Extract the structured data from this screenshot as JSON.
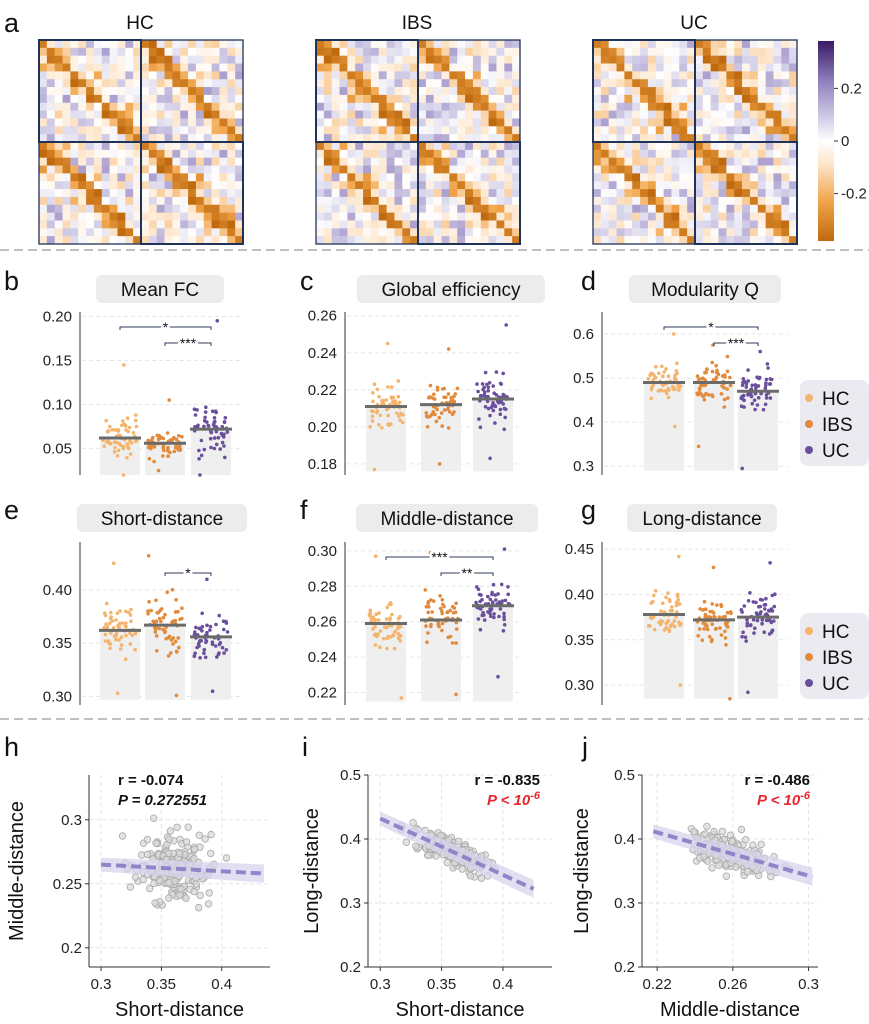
{
  "colors": {
    "HC": "#f4b46c",
    "IBS": "#e18a3b",
    "UC": "#6a4f9d",
    "bar_bg": "#efefef",
    "mean_bar": "#6b6b6b",
    "scatter_point": "#c8c8c8",
    "fit_line": "#8d86c9",
    "fit_band": "#d8d4ee",
    "matrix_frame": "#1f3358",
    "colormap": [
      "#c06a10",
      "#f1a54a",
      "#fde4c8",
      "#ffffff",
      "#d7d3ea",
      "#8f7fbd",
      "#3a1a64"
    ],
    "stat_red": "#e8262f"
  },
  "panel_a": {
    "label": "a",
    "matrix_titles": [
      "HC",
      "IBS",
      "UC"
    ],
    "colorbar": {
      "ticks": [
        "0.2",
        "0",
        "-0.2"
      ],
      "tick_values": [
        0.2,
        0,
        -0.2
      ],
      "range": [
        -0.38,
        0.38
      ]
    }
  },
  "legend": {
    "entries": [
      "HC",
      "IBS",
      "UC"
    ]
  },
  "chart_data": [
    {
      "panel": "b",
      "type": "scatter",
      "title": "Mean FC",
      "categories": [
        "HC",
        "IBS",
        "UC"
      ],
      "means": [
        0.062,
        0.056,
        0.072
      ],
      "ylim": [
        0.02,
        0.205
      ],
      "yticks": [
        0.05,
        0.1,
        0.15,
        0.2
      ],
      "ytick_labels": [
        "0.05",
        "0.10",
        "0.15",
        "0.20"
      ],
      "base": 0.02,
      "point_range": [
        [
          0.02,
          0.145
        ],
        [
          0.025,
          0.105
        ],
        [
          0.02,
          0.195
        ]
      ],
      "comparisons": [
        {
          "from": 0,
          "to": 2,
          "label": "*"
        },
        {
          "from": 1,
          "to": 2,
          "label": "***"
        }
      ]
    },
    {
      "panel": "c",
      "type": "scatter",
      "title": "Global efficiency",
      "categories": [
        "HC",
        "IBS",
        "UC"
      ],
      "means": [
        0.211,
        0.212,
        0.215
      ],
      "ylim": [
        0.174,
        0.262
      ],
      "yticks": [
        0.18,
        0.2,
        0.22,
        0.24,
        0.26
      ],
      "ytick_labels": [
        "0.18",
        "0.20",
        "0.22",
        "0.24",
        "0.26"
      ],
      "base": 0.176,
      "point_range": [
        [
          0.177,
          0.245
        ],
        [
          0.18,
          0.242
        ],
        [
          0.183,
          0.255
        ]
      ],
      "comparisons": []
    },
    {
      "panel": "d",
      "type": "scatter",
      "title": "Modularity Q",
      "categories": [
        "HC",
        "IBS",
        "UC"
      ],
      "means": [
        0.49,
        0.49,
        0.47
      ],
      "ylim": [
        0.28,
        0.65
      ],
      "yticks": [
        0.3,
        0.4,
        0.5,
        0.6
      ],
      "ytick_labels": [
        "0.3",
        "0.4",
        "0.5",
        "0.6"
      ],
      "base": 0.29,
      "point_range": [
        [
          0.39,
          0.6
        ],
        [
          0.345,
          0.575
        ],
        [
          0.295,
          0.56
        ]
      ],
      "comparisons": [
        {
          "from": 0,
          "to": 2,
          "label": "*"
        },
        {
          "from": 1,
          "to": 2,
          "label": "***"
        }
      ]
    },
    {
      "panel": "e",
      "type": "scatter",
      "title": "Short-distance",
      "categories": [
        "HC",
        "IBS",
        "UC"
      ],
      "means": [
        0.362,
        0.367,
        0.356
      ],
      "ylim": [
        0.292,
        0.445
      ],
      "yticks": [
        0.3,
        0.35,
        0.4
      ],
      "ytick_labels": [
        "0.30",
        "0.35",
        "0.40"
      ],
      "base": 0.297,
      "point_range": [
        [
          0.303,
          0.425
        ],
        [
          0.301,
          0.432
        ],
        [
          0.305,
          0.41
        ]
      ],
      "comparisons": [
        {
          "from": 1,
          "to": 2,
          "label": "*"
        }
      ]
    },
    {
      "panel": "f",
      "type": "scatter",
      "title": "Middle-distance",
      "categories": [
        "HC",
        "IBS",
        "UC"
      ],
      "means": [
        0.259,
        0.261,
        0.269
      ],
      "ylim": [
        0.213,
        0.305
      ],
      "yticks": [
        0.22,
        0.24,
        0.26,
        0.28,
        0.3
      ],
      "ytick_labels": [
        "0.22",
        "0.24",
        "0.26",
        "0.28",
        "0.30"
      ],
      "base": 0.215,
      "point_range": [
        [
          0.217,
          0.297
        ],
        [
          0.219,
          0.299
        ],
        [
          0.229,
          0.301
        ]
      ],
      "comparisons": [
        {
          "from": 0,
          "to": 2,
          "label": "***"
        },
        {
          "from": 1,
          "to": 2,
          "label": "**"
        }
      ]
    },
    {
      "panel": "g",
      "type": "scatter",
      "title": "Long-distance",
      "categories": [
        "HC",
        "IBS",
        "UC"
      ],
      "means": [
        0.378,
        0.372,
        0.375
      ],
      "ylim": [
        0.278,
        0.458
      ],
      "yticks": [
        0.3,
        0.35,
        0.4,
        0.45
      ],
      "ytick_labels": [
        "0.30",
        "0.35",
        "0.40",
        "0.45"
      ],
      "base": 0.285,
      "point_range": [
        [
          0.3,
          0.442
        ],
        [
          0.285,
          0.43
        ],
        [
          0.292,
          0.435
        ]
      ],
      "comparisons": []
    },
    {
      "panel": "h",
      "type": "scatter",
      "xlabel": "Short-distance",
      "ylabel": "Middle-distance",
      "xlim": [
        0.29,
        0.44
      ],
      "ylim": [
        0.185,
        0.335
      ],
      "xticks": [
        0.3,
        0.35,
        0.4
      ],
      "xtick_labels": [
        "0.3",
        "0.35",
        "0.4"
      ],
      "yticks": [
        0.2,
        0.25,
        0.3
      ],
      "ytick_labels": [
        "0.2",
        "0.25",
        "0.3"
      ],
      "fit": {
        "x": [
          0.3,
          0.435
        ],
        "y": [
          0.265,
          0.258
        ]
      },
      "stat_r": "r = -0.074",
      "stat_p": "P = 0.272551",
      "p_significant": false,
      "r_value": -0.074,
      "center": [
        0.36,
        0.262
      ],
      "spread": [
        0.027,
        0.022
      ]
    },
    {
      "panel": "i",
      "type": "scatter",
      "xlabel": "Short-distance",
      "ylabel": "Long-distance",
      "xlim": [
        0.29,
        0.44
      ],
      "ylim": [
        0.2,
        0.5
      ],
      "xticks": [
        0.3,
        0.35,
        0.4
      ],
      "xtick_labels": [
        "0.3",
        "0.35",
        "0.4"
      ],
      "yticks": [
        0.2,
        0.3,
        0.4,
        0.5
      ],
      "ytick_labels": [
        "0.2",
        "0.3",
        "0.4",
        "0.5"
      ],
      "fit": {
        "x": [
          0.3,
          0.425
        ],
        "y": [
          0.432,
          0.322
        ]
      },
      "stat_r": "r = -0.835",
      "stat_p": "P < 10",
      "stat_p_exp": "-6",
      "p_significant": true,
      "r_value": -0.835,
      "center": [
        0.36,
        0.378
      ],
      "spread": [
        0.025,
        0.03
      ]
    },
    {
      "panel": "j",
      "type": "scatter",
      "xlabel": "Middle-distance",
      "ylabel": "Long-distance",
      "xlim": [
        0.212,
        0.305
      ],
      "ylim": [
        0.2,
        0.5
      ],
      "xticks": [
        0.22,
        0.26,
        0.3
      ],
      "xtick_labels": [
        "0.22",
        "0.26",
        "0.3"
      ],
      "yticks": [
        0.2,
        0.3,
        0.4,
        0.5
      ],
      "ytick_labels": [
        "0.2",
        "0.3",
        "0.4",
        "0.5"
      ],
      "fit": {
        "x": [
          0.218,
          0.302
        ],
        "y": [
          0.412,
          0.341
        ]
      },
      "stat_r": "r = -0.486",
      "stat_p": "P < 10",
      "stat_p_exp": "-6",
      "p_significant": true,
      "r_value": -0.486,
      "center": [
        0.26,
        0.375
      ],
      "spread": [
        0.018,
        0.03
      ]
    }
  ]
}
